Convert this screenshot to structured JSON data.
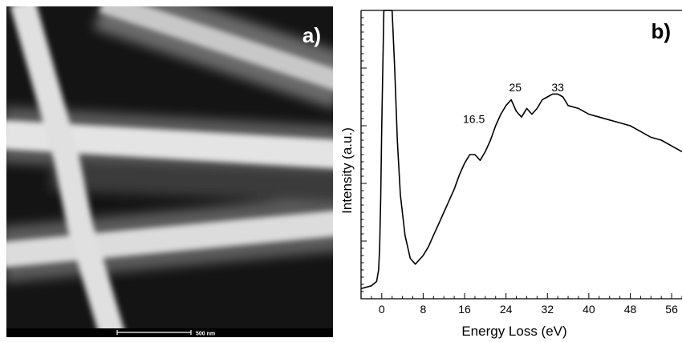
{
  "panel_a": {
    "label": "a)",
    "scale_bar_text": "500 nm"
  },
  "chart_data": {
    "type": "line",
    "panel_label": "b)",
    "title": "",
    "xlabel": "Energy Loss (eV)",
    "ylabel": "Intensity (a.u.)",
    "xlim": [
      -4,
      58
    ],
    "ylim": [
      0,
      100
    ],
    "x_ticks": [
      0,
      8,
      16,
      24,
      32,
      40,
      48,
      56
    ],
    "y_ticks_labeled": false,
    "grid": false,
    "annotations": [
      {
        "text": "16.5",
        "x": 17.8,
        "y": 61
      },
      {
        "text": "25",
        "x": 25.8,
        "y": 72
      },
      {
        "text": "33",
        "x": 34,
        "y": 72
      }
    ],
    "series": [
      {
        "x": [
          -4.0,
          -2.0,
          -1.0,
          -0.6,
          -0.4,
          -0.2,
          0.0,
          0.4,
          1.0,
          1.6,
          2.0,
          2.5,
          3.0,
          3.6,
          4.5,
          5.5,
          6.5,
          8.0,
          9.0,
          10.0,
          11.0,
          12.0,
          13.0,
          14.0,
          15.0,
          16.0,
          17.0,
          18.0,
          19.0,
          20.0,
          21.0,
          22.0,
          23.0,
          24.0,
          25.0,
          26.0,
          27.0,
          28.0,
          29.0,
          30.0,
          31.0,
          32.0,
          33.0,
          34.0,
          35.0,
          36.0,
          38.0,
          40.0,
          42.0,
          44.0,
          46.0,
          48.0,
          50.0,
          52.0,
          54.0,
          56.0,
          58.0
        ],
        "y": [
          3.5,
          4.5,
          6,
          10,
          18,
          35,
          60,
          100,
          100,
          100,
          100,
          80,
          55,
          36,
          22,
          14,
          12,
          15,
          18,
          22,
          26,
          30,
          34,
          38,
          43,
          47,
          50,
          50,
          48,
          51,
          55,
          60,
          64,
          67,
          69,
          65,
          63,
          66,
          64,
          66,
          69,
          70,
          71,
          71,
          70,
          67,
          66,
          64,
          63,
          62,
          61,
          60,
          58,
          56,
          55,
          53,
          51
        ]
      }
    ]
  }
}
